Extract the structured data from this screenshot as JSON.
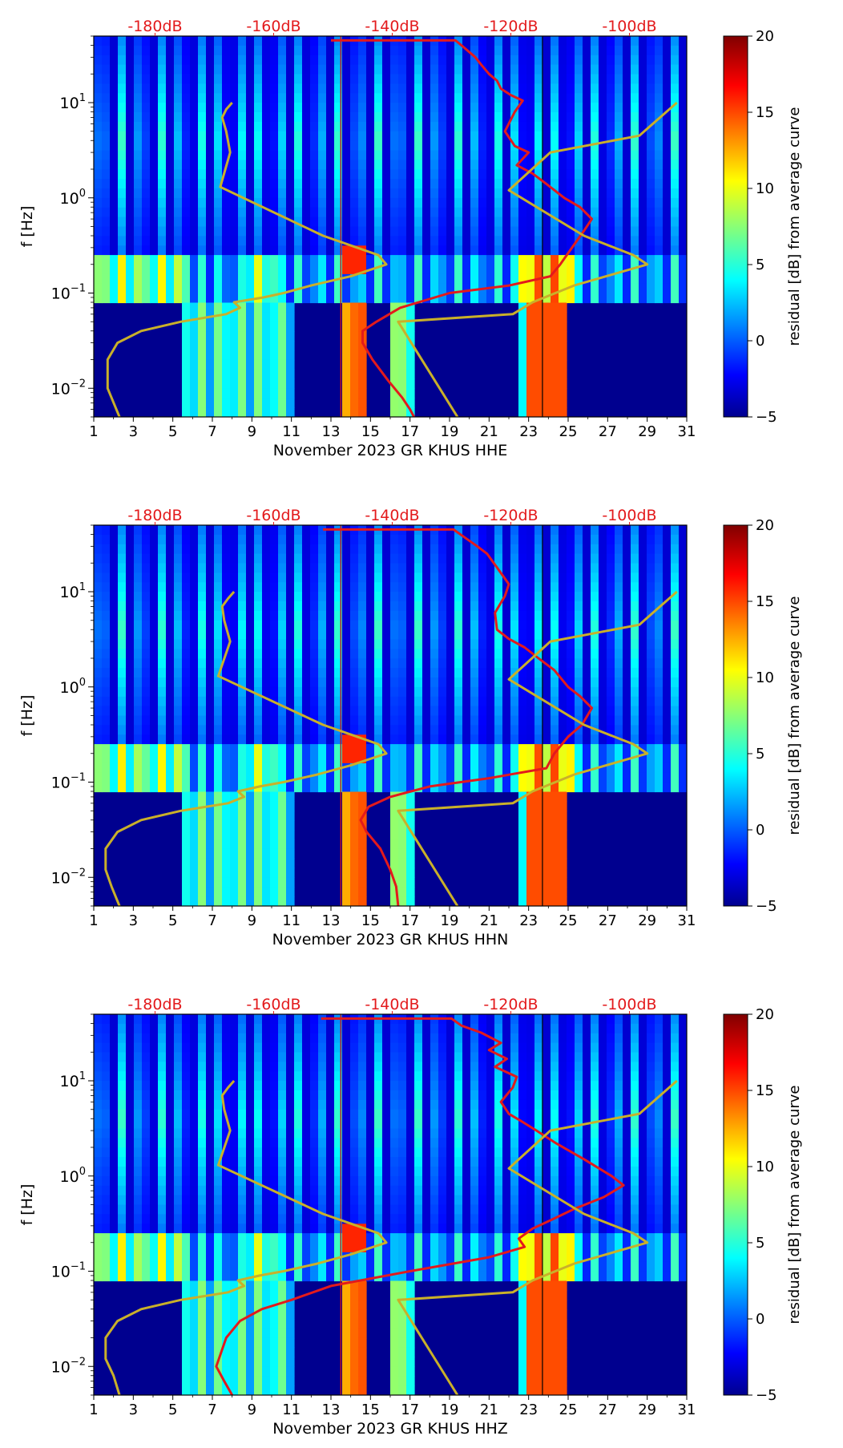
{
  "figure": {
    "panels": [
      {
        "xlabel": "November 2023 GR KHUS  HHE"
      },
      {
        "xlabel": "November 2023 GR KHUS  HHN"
      },
      {
        "xlabel": "November 2023 GR KHUS  HHZ"
      }
    ]
  },
  "chart_data": [
    {
      "type": "heatmap",
      "title": "",
      "xlabel": "November 2023 GR KHUS  HHE",
      "ylabel": "f [Hz]",
      "x_ticks": [
        "1",
        "3",
        "5",
        "7",
        "9",
        "11",
        "13",
        "15",
        "17",
        "19",
        "21",
        "23",
        "25",
        "27",
        "29",
        "31"
      ],
      "xlim": [
        1,
        31
      ],
      "y_scale": "log",
      "ylim": [
        0.005,
        50
      ],
      "y_ticks": [
        "10^-2",
        "10^-1",
        "10^0",
        "10^1"
      ],
      "top_axis_labels": [
        "-180dB",
        "-160dB",
        "-140dB",
        "-120dB",
        "-100dB"
      ],
      "top_axis_positions_day": [
        4.1,
        10.1,
        16.1,
        22.1,
        28.1
      ],
      "colorbar": {
        "label": "residual [dB] from average curve",
        "range": [
          -5,
          20
        ],
        "ticks": [
          "20",
          "15",
          "10",
          "5",
          "0",
          "−5"
        ]
      },
      "series": [
        {
          "name": "red PSD curve",
          "color": "#e31a1c",
          "x": [
            13,
            19.3,
            19.6,
            20.3,
            20.6,
            21,
            21.4,
            21.6,
            22.1,
            22.7,
            22.3,
            21.8,
            22.3,
            23.0,
            22.4,
            23.2,
            23.9,
            24.8,
            25.6,
            26.2,
            25.8,
            25.2,
            24.6,
            24.1,
            22.0,
            19.0,
            16.5,
            15.3,
            14.6,
            14.6,
            15.1,
            15.9,
            16.6,
            17.0,
            17.2
          ],
          "y": [
            45,
            45,
            40,
            30,
            25,
            20,
            17,
            14,
            12,
            10.5,
            8,
            5,
            3.5,
            3,
            2.2,
            1.8,
            1.4,
            1.0,
            0.8,
            0.6,
            0.45,
            0.3,
            0.2,
            0.15,
            0.12,
            0.1,
            0.07,
            0.05,
            0.04,
            0.03,
            0.02,
            0.012,
            0.008,
            0.006,
            0.005
          ]
        },
        {
          "name": "yellow reference curve",
          "color": "#c9b02a",
          "x": [
            2.3,
            1.7,
            1.7,
            2.2,
            3.4,
            5.4,
            7.7,
            8.4,
            8.1,
            9.6,
            10.6,
            12.0,
            14.0,
            15.8,
            15.4,
            12.6,
            7.4,
            7.9,
            7.7,
            7.5,
            7.7,
            8.0
          ],
          "y": [
            0.005,
            0.01,
            0.02,
            0.03,
            0.04,
            0.05,
            0.06,
            0.07,
            0.08,
            0.09,
            0.1,
            0.12,
            0.15,
            0.2,
            0.25,
            0.4,
            1.3,
            3,
            5,
            7,
            8.5,
            10
          ]
        },
        {
          "name": "yellow reference curve 2",
          "color": "#c9b02a",
          "x": [
            19.4,
            16.4,
            22.2,
            23.2,
            25.3,
            29.0,
            28.3,
            25.8,
            22.0,
            24.1,
            28.6,
            30.5
          ],
          "y": [
            0.005,
            0.05,
            0.06,
            0.08,
            0.12,
            0.2,
            0.25,
            0.4,
            1.2,
            3,
            4.5,
            10
          ]
        }
      ],
      "annotations": [
        "vertical line near day 13.5 (red)",
        "vertical line near day 23.7 (black)"
      ]
    },
    {
      "type": "heatmap",
      "title": "",
      "xlabel": "November 2023 GR KHUS  HHN",
      "ylabel": "f [Hz]",
      "x_ticks": [
        "1",
        "3",
        "5",
        "7",
        "9",
        "11",
        "13",
        "15",
        "17",
        "19",
        "21",
        "23",
        "25",
        "27",
        "29",
        "31"
      ],
      "xlim": [
        1,
        31
      ],
      "y_scale": "log",
      "ylim": [
        0.005,
        50
      ],
      "y_ticks": [
        "10^-2",
        "10^-1",
        "10^0",
        "10^1"
      ],
      "top_axis_labels": [
        "-180dB",
        "-160dB",
        "-140dB",
        "-120dB",
        "-100dB"
      ],
      "top_axis_positions_day": [
        4.1,
        10.1,
        16.1,
        22.1,
        28.1
      ],
      "colorbar": {
        "label": "residual [dB] from average curve",
        "range": [
          -5,
          20
        ],
        "ticks": [
          "20",
          "15",
          "10",
          "5",
          "0",
          "−5"
        ]
      },
      "series": [
        {
          "name": "red PSD curve",
          "color": "#e31a1c",
          "x": [
            12.6,
            19.2,
            19.7,
            20.4,
            20.9,
            21.4,
            22.0,
            21.8,
            21.3,
            21.4,
            22.0,
            22.8,
            23.5,
            24.3,
            25.0,
            25.6,
            26.2,
            25.7,
            25.0,
            24.3,
            23.9,
            21.0,
            18.0,
            16.0,
            14.9,
            14.5,
            14.8,
            15.5,
            16.0,
            16.3,
            16.4
          ],
          "y": [
            45,
            45,
            38,
            30,
            25,
            18,
            12,
            9,
            6,
            4,
            3.2,
            2.6,
            2.0,
            1.5,
            1.0,
            0.8,
            0.6,
            0.4,
            0.3,
            0.2,
            0.14,
            0.11,
            0.09,
            0.07,
            0.055,
            0.04,
            0.03,
            0.02,
            0.012,
            0.008,
            0.005
          ]
        },
        {
          "name": "yellow reference curve",
          "color": "#c9b02a",
          "x": [
            2.3,
            1.9,
            1.6,
            1.6,
            2.2,
            3.4,
            5.4,
            7.8,
            8.6,
            8.3,
            9.4,
            10.6,
            12.3,
            14.0,
            15.8,
            15.4,
            12.6,
            7.3,
            7.9,
            7.6,
            7.5,
            7.8,
            8.1
          ],
          "y": [
            0.005,
            0.008,
            0.012,
            0.02,
            0.03,
            0.04,
            0.05,
            0.06,
            0.07,
            0.08,
            0.09,
            0.1,
            0.12,
            0.15,
            0.2,
            0.25,
            0.4,
            1.3,
            3,
            5,
            7,
            8.5,
            10
          ]
        },
        {
          "name": "yellow reference curve 2",
          "color": "#c9b02a",
          "x": [
            19.4,
            16.4,
            22.2,
            23.2,
            25.3,
            29.0,
            28.3,
            25.8,
            22.0,
            24.1,
            28.6,
            30.5
          ],
          "y": [
            0.005,
            0.05,
            0.06,
            0.08,
            0.12,
            0.2,
            0.25,
            0.4,
            1.2,
            3,
            4.5,
            10
          ]
        }
      ],
      "annotations": [
        "vertical line near day 13.5 (red)",
        "vertical line near day 23.7 (black)"
      ]
    },
    {
      "type": "heatmap",
      "title": "",
      "xlabel": "November 2023 GR KHUS  HHZ",
      "ylabel": "f [Hz]",
      "x_ticks": [
        "1",
        "3",
        "5",
        "7",
        "9",
        "11",
        "13",
        "15",
        "17",
        "19",
        "21",
        "23",
        "25",
        "27",
        "29",
        "31"
      ],
      "xlim": [
        1,
        31
      ],
      "y_scale": "log",
      "ylim": [
        0.005,
        50
      ],
      "y_ticks": [
        "10^-2",
        "10^-1",
        "10^0",
        "10^1"
      ],
      "top_axis_labels": [
        "-180dB",
        "-160dB",
        "-140dB",
        "-120dB",
        "-100dB"
      ],
      "top_axis_positions_day": [
        4.1,
        10.1,
        16.1,
        22.1,
        28.1
      ],
      "colorbar": {
        "label": "residual [dB] from average curve",
        "range": [
          -5,
          20
        ],
        "ticks": [
          "20",
          "15",
          "10",
          "5",
          "0",
          "−5"
        ]
      },
      "series": [
        {
          "name": "red PSD curve",
          "color": "#e31a1c",
          "x": [
            12.5,
            19.1,
            19.6,
            20.6,
            21.6,
            21.0,
            21.9,
            21.3,
            22.4,
            22.2,
            21.6,
            22.0,
            22.6,
            23.4,
            24.4,
            25.8,
            27.2,
            27.8,
            26.8,
            25.3,
            24.2,
            23.2,
            22.5,
            22.8,
            21.0,
            17.0,
            13.0,
            11.0,
            9.5,
            8.4,
            7.7,
            7.2,
            7.6,
            8.0
          ],
          "y": [
            45,
            45,
            38,
            32,
            25,
            21,
            17,
            14,
            11,
            8.5,
            6,
            4.5,
            3.8,
            3,
            2.2,
            1.5,
            1.0,
            0.8,
            0.6,
            0.45,
            0.35,
            0.28,
            0.22,
            0.18,
            0.14,
            0.1,
            0.07,
            0.05,
            0.04,
            0.03,
            0.02,
            0.01,
            0.007,
            0.005
          ]
        },
        {
          "name": "yellow reference curve",
          "color": "#c9b02a",
          "x": [
            2.3,
            2.0,
            1.6,
            1.6,
            2.2,
            3.4,
            5.4,
            7.8,
            8.6,
            8.3,
            9.4,
            10.6,
            12.3,
            14.0,
            15.8,
            15.4,
            12.6,
            7.3,
            7.9,
            7.6,
            7.5,
            7.8,
            8.1
          ],
          "y": [
            0.005,
            0.008,
            0.012,
            0.02,
            0.03,
            0.04,
            0.05,
            0.06,
            0.07,
            0.08,
            0.09,
            0.1,
            0.12,
            0.15,
            0.2,
            0.25,
            0.4,
            1.3,
            3,
            5,
            7,
            8.5,
            10
          ]
        },
        {
          "name": "yellow reference curve 2",
          "color": "#c9b02a",
          "x": [
            19.4,
            16.4,
            22.2,
            23.2,
            25.3,
            29.0,
            28.3,
            25.8,
            22.0,
            24.1,
            28.6,
            30.5
          ],
          "y": [
            0.005,
            0.05,
            0.06,
            0.08,
            0.12,
            0.2,
            0.25,
            0.4,
            1.2,
            3,
            4.5,
            10
          ]
        }
      ],
      "annotations": [
        "vertical line near day 13.5 (red)",
        "vertical line near day 23.7 (black)"
      ]
    }
  ]
}
